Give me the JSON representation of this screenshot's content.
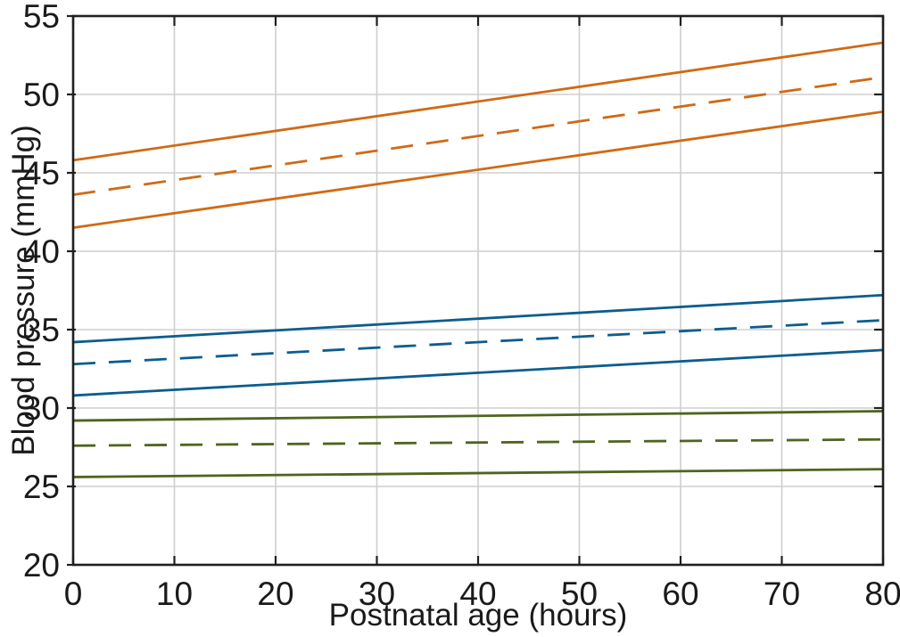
{
  "figure": {
    "background": "#ffffff"
  },
  "chart_data": {
    "type": "line",
    "title": "",
    "xlabel": "Postnatal age (hours)",
    "ylabel": "Blood pressure (mmHg)",
    "xlim": [
      0,
      80
    ],
    "ylim": [
      20,
      55
    ],
    "xticks": [
      0,
      10,
      20,
      30,
      40,
      50,
      60,
      70,
      80
    ],
    "yticks": [
      20,
      25,
      30,
      35,
      40,
      45,
      50,
      55
    ],
    "grid": true,
    "legend_visible": false,
    "colors": {
      "axis": "#202020",
      "grid": "#cfcfcf",
      "orange": "#cf6a15",
      "blue": "#0c5d8f",
      "green": "#4f641e"
    },
    "series": [
      {
        "name": "orange-band-upper-limit",
        "color": "#cf6a15",
        "style": "solid",
        "x": [
          0,
          80
        ],
        "y": [
          45.8,
          53.3
        ]
      },
      {
        "name": "orange-band-midline",
        "color": "#cf6a15",
        "style": "dashed",
        "x": [
          0,
          80
        ],
        "y": [
          43.6,
          51.1
        ]
      },
      {
        "name": "orange-band-lower-limit",
        "color": "#cf6a15",
        "style": "solid",
        "x": [
          0,
          80
        ],
        "y": [
          41.5,
          48.9
        ]
      },
      {
        "name": "blue-band-upper-limit",
        "color": "#0c5d8f",
        "style": "solid",
        "x": [
          0,
          80
        ],
        "y": [
          34.2,
          37.2
        ]
      },
      {
        "name": "blue-band-midline",
        "color": "#0c5d8f",
        "style": "dashed",
        "x": [
          0,
          80
        ],
        "y": [
          32.8,
          35.6
        ]
      },
      {
        "name": "blue-band-lower-limit",
        "color": "#0c5d8f",
        "style": "solid",
        "x": [
          0,
          80
        ],
        "y": [
          30.8,
          33.7
        ]
      },
      {
        "name": "green-band-upper-limit",
        "color": "#4f641e",
        "style": "solid",
        "x": [
          0,
          80
        ],
        "y": [
          29.2,
          29.8
        ]
      },
      {
        "name": "green-band-midline",
        "color": "#4f641e",
        "style": "dashed",
        "x": [
          0,
          80
        ],
        "y": [
          27.6,
          28.0
        ]
      },
      {
        "name": "green-band-lower-limit",
        "color": "#4f641e",
        "style": "solid",
        "x": [
          0,
          80
        ],
        "y": [
          25.6,
          26.1
        ]
      }
    ]
  }
}
